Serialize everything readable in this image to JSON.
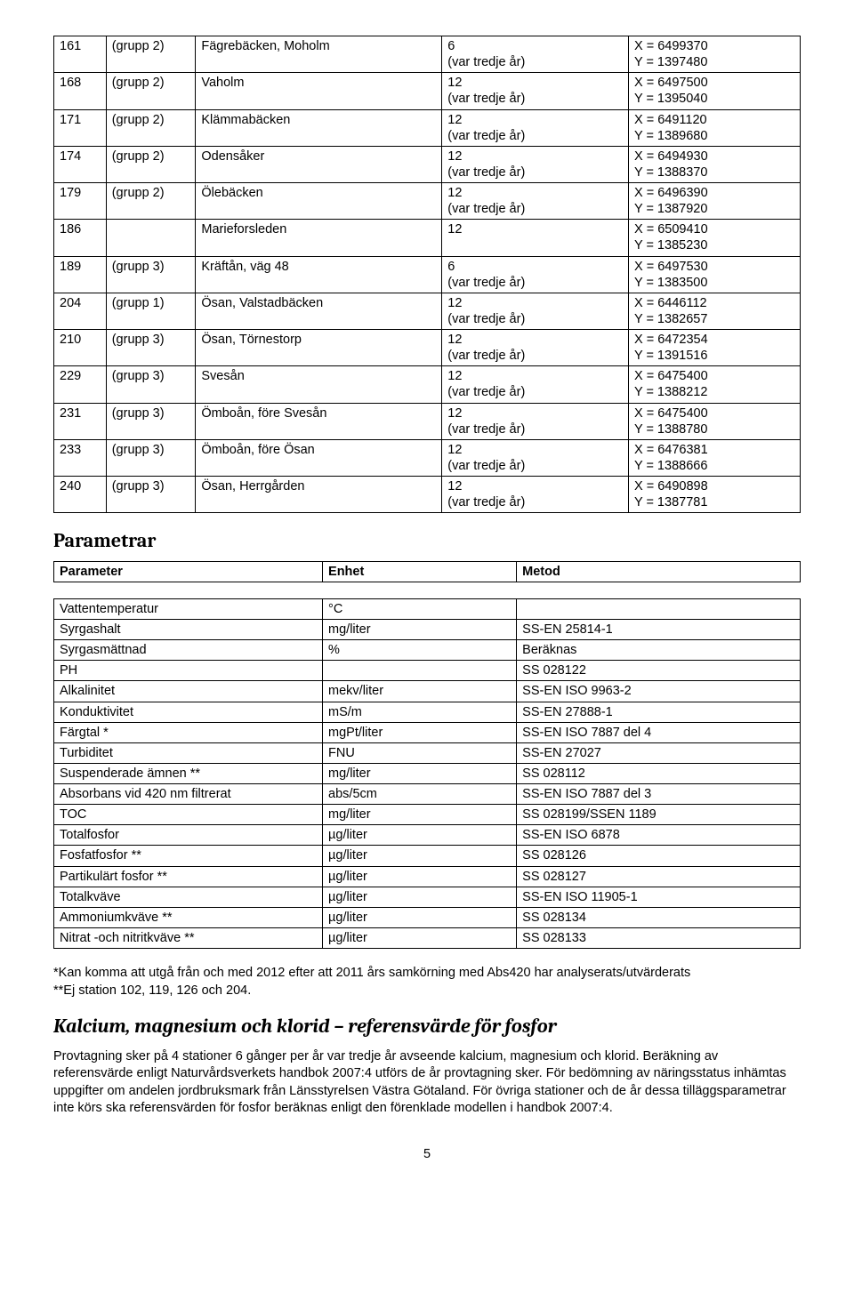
{
  "table1": {
    "rows": [
      {
        "id": "161",
        "grp": "(grupp 2)",
        "name": "Fägrebäcken, Moholm",
        "freq": "6\n(var tredje år)",
        "coords": "X = 6499370\nY = 1397480"
      },
      {
        "id": "168",
        "grp": "(grupp 2)",
        "name": "Vaholm",
        "freq": "12\n(var tredje år)",
        "coords": "X = 6497500\nY = 1395040"
      },
      {
        "id": "171",
        "grp": "(grupp 2)",
        "name": "Klämmabäcken",
        "freq": "12\n(var tredje år)",
        "coords": "X = 6491120\nY = 1389680"
      },
      {
        "id": "174",
        "grp": "(grupp 2)",
        "name": "Odensåker",
        "freq": "12\n(var tredje år)",
        "coords": "X = 6494930\nY = 1388370"
      },
      {
        "id": "179",
        "grp": "(grupp 2)",
        "name": "Ölebäcken",
        "freq": "12\n(var tredje år)",
        "coords": "X = 6496390\nY = 1387920"
      },
      {
        "id": "186",
        "grp": "",
        "name": "Marieforsleden",
        "freq": "12",
        "coords": "X = 6509410\nY = 1385230"
      },
      {
        "id": "189",
        "grp": "(grupp 3)",
        "name": "Kräftån, väg 48",
        "freq": "6\n(var tredje år)",
        "coords": "X = 6497530\nY = 1383500"
      },
      {
        "id": "204",
        "grp": "(grupp 1)",
        "name": "Ösan, Valstadbäcken",
        "freq": "12\n(var tredje år)",
        "coords": "X = 6446112\nY = 1382657"
      },
      {
        "id": "210",
        "grp": "(grupp 3)",
        "name": "Ösan, Törnestorp",
        "freq": "12\n(var tredje år)",
        "coords": "X = 6472354\nY = 1391516"
      },
      {
        "id": "229",
        "grp": "(grupp 3)",
        "name": "Svesån",
        "freq": "12\n(var tredje år)",
        "coords": "X = 6475400\nY = 1388212"
      },
      {
        "id": "231",
        "grp": "(grupp 3)",
        "name": "Ömboån, före Svesån",
        "freq": "12\n(var tredje år)",
        "coords": "X = 6475400\nY = 1388780"
      },
      {
        "id": "233",
        "grp": "(grupp 3)",
        "name": "Ömboån, före Ösan",
        "freq": "12\n(var tredje år)",
        "coords": "X = 6476381\nY = 1388666"
      },
      {
        "id": "240",
        "grp": "(grupp 3)",
        "name": "Ösan, Herrgården",
        "freq": "12\n(var tredje år)",
        "coords": "X = 6490898\nY = 1387781"
      }
    ]
  },
  "headings": {
    "parametrar": "Parametrar",
    "kalcium": "Kalcium, magnesium och klorid – referensvärde för fosfor"
  },
  "table2_header": {
    "c1": "Parameter",
    "c2": "Enhet",
    "c3": "Metod"
  },
  "table3": {
    "rows": [
      {
        "p": "Vattentemperatur",
        "e": "°C",
        "m": ""
      },
      {
        "p": "Syrgashalt",
        "e": "mg/liter",
        "m": "SS-EN 25814-1"
      },
      {
        "p": "Syrgasmättnad",
        "e": "%",
        "m": "Beräknas"
      },
      {
        "p": "PH",
        "e": "",
        "m": "SS 028122"
      },
      {
        "p": "Alkalinitet",
        "e": "mekv/liter",
        "m": "SS-EN ISO 9963-2"
      },
      {
        "p": "Konduktivitet",
        "e": "mS/m",
        "m": "SS-EN 27888-1"
      },
      {
        "p": "Färgtal *",
        "e": "mgPt/liter",
        "m": "SS-EN ISO 7887 del 4"
      },
      {
        "p": "Turbiditet",
        "e": "FNU",
        "m": "SS-EN 27027"
      },
      {
        "p": "Suspenderade ämnen **",
        "e": "mg/liter",
        "m": "SS 028112"
      },
      {
        "p": "Absorbans vid 420 nm filtrerat",
        "e": "abs/5cm",
        "m": "SS-EN ISO 7887 del 3"
      },
      {
        "p": "TOC",
        "e": "mg/liter",
        "m": "SS 028199/SSEN 1189"
      },
      {
        "p": "Totalfosfor",
        "e": "µg/liter",
        "m": "SS-EN ISO 6878"
      },
      {
        "p": "Fosfatfosfor **",
        "e": "µg/liter",
        "m": "SS 028126"
      },
      {
        "p": "Partikulärt fosfor **",
        "e": "µg/liter",
        "m": "SS 028127"
      },
      {
        "p": "Totalkväve",
        "e": "µg/liter",
        "m": "SS-EN ISO 11905-1"
      },
      {
        "p": "Ammoniumkväve **",
        "e": "µg/liter",
        "m": "SS 028134"
      },
      {
        "p": "Nitrat -och nitritkväve **",
        "e": "µg/liter",
        "m": "SS 028133"
      }
    ]
  },
  "notes": {
    "n1": "*Kan komma att utgå från och med 2012 efter att 2011 års samkörning med Abs420 har analyserats/utvärderats",
    "n2": "**Ej station 102, 119, 126 och 204."
  },
  "body": {
    "p1": "Provtagning sker på 4 stationer 6 gånger per år var tredje år avseende kalcium, magnesium och klorid. Beräkning av referensvärde enligt Naturvårdsverkets handbok 2007:4 utförs de år provtagning sker. För bedömning av näringsstatus inhämtas uppgifter om andelen jordbruksmark från Länsstyrelsen Västra Götaland. För övriga stationer och de år dessa tilläggsparametrar inte körs ska referensvärden för fosfor beräknas enligt den förenklade modellen i handbok 2007:4."
  },
  "pagenum": "5"
}
